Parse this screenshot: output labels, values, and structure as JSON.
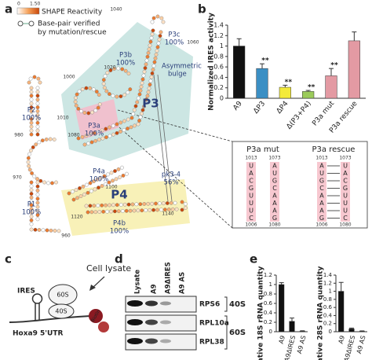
{
  "panel_labels": [
    "a",
    "b",
    "c",
    "d",
    "e"
  ],
  "structure": {
    "legend": {
      "title": "SHAPE Reactivity",
      "min": "0",
      "max": "1.50",
      "basepair": [
        "Base-pair verified",
        "by mutation/rescue"
      ]
    },
    "helices": [
      {
        "name": "P3c",
        "support": "100%"
      },
      {
        "name": "P3b",
        "support": "100%"
      },
      {
        "name": "P2",
        "support": "100%"
      },
      {
        "name": "P3a",
        "support": "100%"
      },
      {
        "name": "pk3-4",
        "support": "56%"
      },
      {
        "name": "P4a",
        "support": "100%"
      },
      {
        "name": "P1",
        "support": "100%"
      },
      {
        "name": "P4b",
        "support": "100%"
      }
    ],
    "regions": [
      "P3",
      "P4"
    ],
    "bulge": [
      "Asymmetric",
      "bulge"
    ],
    "positions": [
      "1040",
      "1060",
      "1020",
      "1000",
      "980",
      "1010",
      "1080",
      "970",
      "960",
      "1100",
      "1120",
      "1140"
    ]
  },
  "chart_data": [
    {
      "type": "bar",
      "ylabel": "Normalized IRES activity",
      "categories": [
        "A9",
        "ΔP3",
        "ΔP4",
        "Δ(P3+P4)",
        "P3a mut",
        "P3a rescue"
      ],
      "values": [
        1.0,
        0.57,
        0.21,
        0.13,
        0.43,
        1.1
      ],
      "errors": [
        0.14,
        0.09,
        0.04,
        0.02,
        0.14,
        0.17
      ],
      "colors": [
        "#111111",
        "#3b8fc4",
        "#f3ea3a",
        "#9bcb5a",
        "#e39aa3",
        "#e39aa3"
      ],
      "significance": [
        null,
        "**",
        "**",
        "**",
        "**",
        null
      ],
      "ylim": [
        0,
        1.4
      ],
      "yticks": [
        0,
        0.2,
        0.4,
        0.6,
        0.8,
        1,
        1.2,
        1.4
      ]
    },
    {
      "type": "bar",
      "ylabel": "Relative 18S rRNA quantity",
      "categories": [
        "A9",
        "A9ΔIRES",
        "A9 AS"
      ],
      "values": [
        1.0,
        0.22,
        0.01
      ],
      "errors": [
        0.04,
        0.07,
        0.01
      ],
      "colors": [
        "#111111",
        "#111111",
        "#111111"
      ],
      "ylim": [
        0,
        1.2
      ],
      "yticks": [
        0,
        0.2,
        0.4,
        0.6,
        0.8,
        1,
        1.2
      ]
    },
    {
      "type": "bar",
      "ylabel": "Relative 28S rRNA quantity",
      "categories": [
        "A9",
        "A9ΔIRES",
        "A9 AS"
      ],
      "values": [
        1.0,
        0.07,
        0.01
      ],
      "errors": [
        0.22,
        0.02,
        0.01
      ],
      "colors": [
        "#111111",
        "#111111",
        "#111111"
      ],
      "ylim": [
        0,
        1.4
      ],
      "yticks": [
        0,
        0.2,
        0.4,
        0.6,
        0.8,
        1,
        1.2,
        1.4
      ]
    }
  ],
  "inset": {
    "mut": {
      "title": "P3a mut",
      "top": [
        "1013",
        "1073"
      ],
      "left": [
        "U",
        "A",
        "C",
        "G",
        "U",
        "U",
        "U",
        "C"
      ],
      "right": [
        "A",
        "U",
        "G",
        "C",
        "A",
        "A",
        "A",
        "G"
      ],
      "bottom": [
        "1006",
        "1080"
      ]
    },
    "rescue": {
      "title": "P3a rescue",
      "top": [
        "1013",
        "1073"
      ],
      "left": [
        "A",
        "U",
        "G",
        "C",
        "A",
        "A",
        "A",
        "G"
      ],
      "right": [
        "U",
        "A",
        "C",
        "G",
        "U",
        "U",
        "U",
        "C"
      ],
      "bottom": [
        "1006",
        "1080"
      ]
    }
  },
  "pulldown": {
    "lysate": "Cell lysate",
    "ires": "IRES",
    "large": "60S",
    "small": "40S",
    "biotin": "Biotin",
    "utr": "Hoxa9 5'UTR"
  },
  "blot": {
    "lanes": [
      "Lysate",
      "A9",
      "A9ΔIRES",
      "A9 AS"
    ],
    "proteins": [
      "RPS6",
      "RPL10a",
      "RPL38"
    ],
    "subunits": [
      "40S",
      "60S"
    ]
  }
}
